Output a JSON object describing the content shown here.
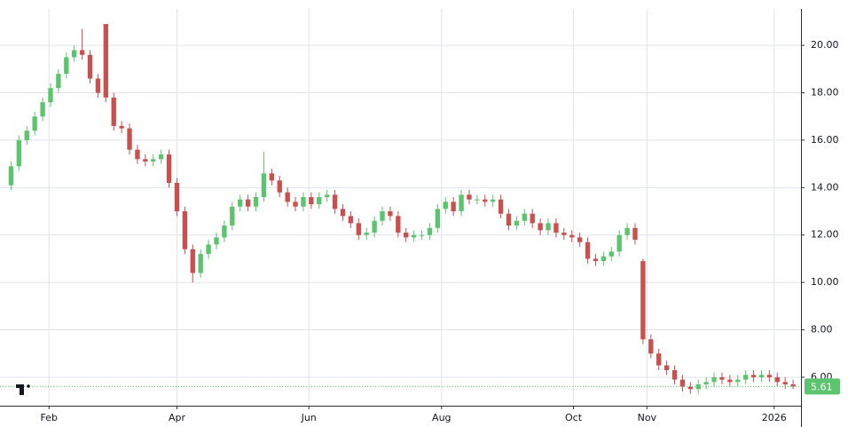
{
  "chart_data": {
    "type": "candlestick",
    "open": [
      14.1,
      14.9,
      16.0,
      16.4,
      17.0,
      17.6,
      18.2,
      18.8,
      19.5,
      19.8,
      19.6,
      18.6,
      20.9,
      17.8,
      16.6,
      16.5,
      15.6,
      15.2,
      15.1,
      15.2,
      15.4,
      14.2,
      13.0,
      11.4,
      10.4,
      11.2,
      11.6,
      11.9,
      12.4,
      13.2,
      13.5,
      13.2,
      13.6,
      14.6,
      14.3,
      13.8,
      13.4,
      13.2,
      13.6,
      13.3,
      13.6,
      13.7,
      13.1,
      12.8,
      12.5,
      12.0,
      12.1,
      12.6,
      13.0,
      12.8,
      12.1,
      11.9,
      12.0,
      12.0,
      12.3,
      13.1,
      13.4,
      13.0,
      13.7,
      13.5,
      13.5,
      13.4,
      13.5,
      12.9,
      12.4,
      12.6,
      12.9,
      12.5,
      12.2,
      12.5,
      12.1,
      12.0,
      11.9,
      11.7,
      11.0,
      10.9,
      11.1,
      11.3,
      12.0,
      12.3,
      10.9,
      7.6,
      7.0,
      6.5,
      6.3,
      5.9,
      5.6,
      5.5,
      5.7,
      5.8,
      6.0,
      5.9,
      5.8,
      5.9,
      6.1,
      6.0,
      6.1,
      6.0,
      5.8,
      5.7
    ],
    "high": [
      15.1,
      16.2,
      16.6,
      17.2,
      17.8,
      18.4,
      19.0,
      19.7,
      20.0,
      20.7,
      19.8,
      18.8,
      20.9,
      18.0,
      16.8,
      16.7,
      15.8,
      15.4,
      15.4,
      15.6,
      15.6,
      14.4,
      13.2,
      11.6,
      11.4,
      11.8,
      12.1,
      12.6,
      13.4,
      13.7,
      13.7,
      13.8,
      15.5,
      14.8,
      14.5,
      14.0,
      13.6,
      13.8,
      13.8,
      13.8,
      13.9,
      13.9,
      13.3,
      13.0,
      12.7,
      12.3,
      12.8,
      13.2,
      13.2,
      13.0,
      12.3,
      12.2,
      12.2,
      12.5,
      13.3,
      13.6,
      13.6,
      13.9,
      13.9,
      13.7,
      13.7,
      13.7,
      13.7,
      13.1,
      12.8,
      13.1,
      13.1,
      12.7,
      12.7,
      12.7,
      12.3,
      12.2,
      12.1,
      11.9,
      11.2,
      11.3,
      11.5,
      12.2,
      12.5,
      12.5,
      11.0,
      7.8,
      7.2,
      6.7,
      6.5,
      6.1,
      5.8,
      5.9,
      6.0,
      6.2,
      6.2,
      6.1,
      6.1,
      6.3,
      6.3,
      6.3,
      6.3,
      6.2,
      6.0,
      5.9
    ],
    "low": [
      13.9,
      14.7,
      15.8,
      16.2,
      16.8,
      17.4,
      18.0,
      18.6,
      19.3,
      19.4,
      18.4,
      17.8,
      17.6,
      16.4,
      16.3,
      15.4,
      15.0,
      14.9,
      14.9,
      15.0,
      14.0,
      12.8,
      11.2,
      10.0,
      10.2,
      11.0,
      11.4,
      11.7,
      12.2,
      13.0,
      13.0,
      13.0,
      13.4,
      14.1,
      13.6,
      13.2,
      13.0,
      13.0,
      13.1,
      13.1,
      13.4,
      12.9,
      12.6,
      12.3,
      11.8,
      11.8,
      11.9,
      12.4,
      12.6,
      11.9,
      11.7,
      11.7,
      11.8,
      11.8,
      12.1,
      12.9,
      12.8,
      12.8,
      13.3,
      13.3,
      13.2,
      13.2,
      12.7,
      12.2,
      12.2,
      12.4,
      12.3,
      12.0,
      12.0,
      11.9,
      11.8,
      11.7,
      11.5,
      10.8,
      10.7,
      10.7,
      10.9,
      11.1,
      11.8,
      11.6,
      7.4,
      6.8,
      6.3,
      6.1,
      5.7,
      5.4,
      5.3,
      5.3,
      5.5,
      5.6,
      5.7,
      5.6,
      5.6,
      5.7,
      5.8,
      5.8,
      5.8,
      5.6,
      5.5,
      5.5
    ],
    "close": [
      14.9,
      16.0,
      16.4,
      17.0,
      17.6,
      18.2,
      18.8,
      19.5,
      19.8,
      19.6,
      18.6,
      18.0,
      17.8,
      16.6,
      16.5,
      15.6,
      15.2,
      15.1,
      15.2,
      15.4,
      14.2,
      13.0,
      11.4,
      10.4,
      11.2,
      11.6,
      11.9,
      12.4,
      13.2,
      13.5,
      13.2,
      13.6,
      14.6,
      14.3,
      13.8,
      13.4,
      13.2,
      13.6,
      13.3,
      13.6,
      13.7,
      13.1,
      12.8,
      12.5,
      12.0,
      12.1,
      12.6,
      13.0,
      12.8,
      12.1,
      11.9,
      12.0,
      12.0,
      12.3,
      13.1,
      13.4,
      13.0,
      13.7,
      13.5,
      13.5,
      13.4,
      13.5,
      12.9,
      12.4,
      12.6,
      12.9,
      12.5,
      12.2,
      12.5,
      12.1,
      12.0,
      11.9,
      11.7,
      11.0,
      10.9,
      11.1,
      11.3,
      12.0,
      12.3,
      11.8,
      7.6,
      7.0,
      6.5,
      6.3,
      5.9,
      5.6,
      5.5,
      5.7,
      5.8,
      6.0,
      5.9,
      5.8,
      5.9,
      6.1,
      6.0,
      6.1,
      6.0,
      5.8,
      5.7,
      5.61
    ],
    "up_color": "#5cc46e",
    "down_color": "#c9504f",
    "xlim": [
      -0.5,
      100
    ],
    "xticks": [
      {
        "value": 4.8,
        "label": "Feb"
      },
      {
        "value": 21,
        "label": "Apr"
      },
      {
        "value": 37.7,
        "label": "Jun"
      },
      {
        "value": 54.5,
        "label": "Aug"
      },
      {
        "value": 71.2,
        "label": "Oct"
      },
      {
        "value": 80.5,
        "label": "Nov"
      },
      {
        "value": 96.6,
        "label": "2026"
      }
    ],
    "ylim": [
      4.8,
      21.54
    ],
    "yticks": [
      {
        "value": 6,
        "label": "6.00"
      },
      {
        "value": 8,
        "label": "8.00"
      },
      {
        "value": 10,
        "label": "10.00"
      },
      {
        "value": 12,
        "label": "12.00"
      },
      {
        "value": 14,
        "label": "14.00"
      },
      {
        "value": 16,
        "label": "16.00"
      },
      {
        "value": 18,
        "label": "18.00"
      },
      {
        "value": 20,
        "label": "20.00"
      }
    ],
    "grid": true
  }
}
